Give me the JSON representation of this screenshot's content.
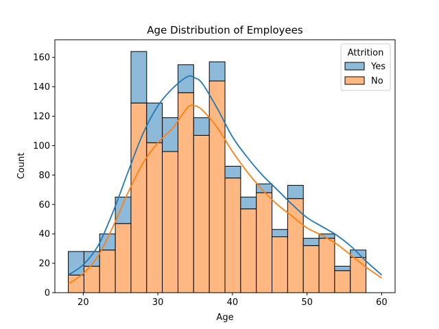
{
  "chart_data": {
    "type": "histogram",
    "title": "Age Distribution of Employees",
    "xlabel": "Age",
    "ylabel": "Count",
    "xlim": [
      16.2,
      61.8
    ],
    "ylim": [
      0,
      172
    ],
    "xticks": [
      20,
      30,
      40,
      50,
      60
    ],
    "yticks": [
      0,
      20,
      40,
      60,
      80,
      100,
      120,
      140,
      160
    ],
    "bin_start": 18,
    "bin_width": 2.1,
    "multiple": "stack",
    "grid": false,
    "legend": {
      "title": "Attrition",
      "placement": "top-right",
      "entries": [
        "Yes",
        "No"
      ]
    },
    "series": [
      {
        "name": "No",
        "color": "#ffb882",
        "edge_color": "#000000",
        "kde_color": "#ff7f0e",
        "values": [
          12,
          18,
          29,
          47,
          129,
          102,
          96,
          136,
          107,
          144,
          78,
          57,
          68,
          38,
          64,
          32,
          37,
          15,
          24
        ],
        "kde": [
          [
            18,
            6
          ],
          [
            20,
            13
          ],
          [
            22,
            25
          ],
          [
            24,
            45
          ],
          [
            26,
            68
          ],
          [
            28,
            88
          ],
          [
            30,
            102
          ],
          [
            32,
            112
          ],
          [
            34,
            126
          ],
          [
            35,
            127
          ],
          [
            36,
            124
          ],
          [
            38,
            112
          ],
          [
            40,
            96
          ],
          [
            42,
            82
          ],
          [
            44,
            70
          ],
          [
            46,
            60
          ],
          [
            48,
            52
          ],
          [
            50,
            44
          ],
          [
            52,
            39
          ],
          [
            54,
            33
          ],
          [
            56,
            25
          ],
          [
            58,
            17
          ],
          [
            60,
            10
          ]
        ]
      },
      {
        "name": "Yes",
        "color": "#8ebad9",
        "edge_color": "#000000",
        "kde_color": "#1f77b4",
        "values": [
          16,
          10,
          11,
          18,
          35,
          27,
          23,
          19,
          12,
          13,
          8,
          8,
          6,
          5,
          9,
          5,
          3,
          3,
          5
        ],
        "kde": [
          [
            18,
            12
          ],
          [
            20,
            19
          ],
          [
            22,
            32
          ],
          [
            24,
            55
          ],
          [
            26,
            82
          ],
          [
            28,
            108
          ],
          [
            30,
            127
          ],
          [
            32,
            139
          ],
          [
            34,
            147
          ],
          [
            35,
            146
          ],
          [
            36,
            142
          ],
          [
            38,
            125
          ],
          [
            40,
            106
          ],
          [
            42,
            92
          ],
          [
            44,
            80
          ],
          [
            46,
            70
          ],
          [
            48,
            60
          ],
          [
            50,
            51
          ],
          [
            52,
            45
          ],
          [
            54,
            39
          ],
          [
            56,
            31
          ],
          [
            58,
            21
          ],
          [
            60,
            12
          ]
        ]
      }
    ]
  }
}
